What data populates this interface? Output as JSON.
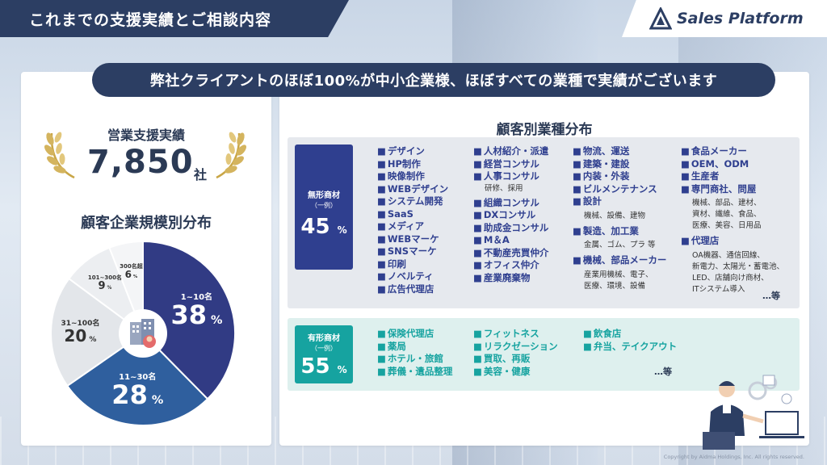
{
  "header": {
    "title": "これまでの支援実績とご相談内容",
    "logo": "Sales Platform"
  },
  "banner": "弊社クライアントのほぼ100%が中小企業様、ほぼすべての業種で実績がございます",
  "left": {
    "performance_label": "営業支援実績",
    "performance_number": "7,850",
    "performance_unit": "社",
    "distribution_title": "顧客企業規模別分布",
    "pie": [
      {
        "name": "1~10名",
        "value": 38,
        "pct": "%",
        "color": "#313b84"
      },
      {
        "name": "11~30名",
        "value": 28,
        "pct": "%",
        "color": "#2f5f9e"
      },
      {
        "name": "31~100名",
        "value": 20,
        "pct": "%",
        "color": "#e3e6ea"
      },
      {
        "name": "101~300名",
        "value": 9,
        "pct": "%",
        "color": "#eceef1"
      },
      {
        "name": "300名超",
        "value": 6,
        "pct": "%",
        "color": "#f4f5f7"
      }
    ]
  },
  "right": {
    "title": "顧客別業種分布",
    "intangible": {
      "name": "無形商材",
      "sub": "（一例）",
      "pct": "45",
      "pct_unit": "%",
      "col_a": [
        "デザイン",
        "HP制作",
        "映像制作",
        "WEBデザイン",
        "システム開発",
        "SaaS",
        "メディア",
        "WEBマーケ",
        "SNSマーケ",
        "印刷",
        "ノベルティ",
        "広告代理店"
      ],
      "col_b": {
        "items1": [
          "人材紹介・派遣",
          "経営コンサル",
          "人事コンサル"
        ],
        "note1": "研修、採用",
        "items2": [
          "組織コンサル",
          "DXコンサル",
          "助成金コンサル",
          "M＆A",
          "不動産売買仲介",
          "オフィス仲介",
          "産業廃棄物"
        ]
      },
      "col_c": {
        "items1": [
          "物流、運送",
          "建築・建設",
          "内装・外装",
          "ビルメンテナンス",
          "設計"
        ],
        "note1": "機械、設備、建物",
        "item2": "製造、加工業",
        "note2": "金属、ゴム、プラ 等",
        "item3": "機械、部品メーカー",
        "note3a": "産業用機械、電子、",
        "note3b": "医療、環境、設備"
      },
      "col_d": {
        "items1": [
          "食品メーカー",
          "OEM、ODM",
          "生産者",
          "専門商社、問屋"
        ],
        "note1a": "機械、部品、建材、",
        "note1b": "資材、繊維、食品、",
        "note1c": "医療、美容、日用品",
        "item2": "代理店",
        "note2a": "OA機器、通信回線、",
        "note2b": "新電力、太陽光・蓄電池、",
        "note2c": "LED、店舗向け商材、",
        "note2d": "ITシステム導入"
      },
      "etc": "…等"
    },
    "tangible": {
      "name": "有形商材",
      "sub": "（一例）",
      "pct": "55",
      "pct_unit": "%",
      "col_a": [
        "保険代理店",
        "薬局",
        "ホテル・旅館",
        "葬儀・遺品整理"
      ],
      "col_b": [
        "フィットネス",
        "リラクゼーション",
        "買取、再販",
        "美容・健康"
      ],
      "col_c": [
        "飲食店",
        "弁当、テイクアウト"
      ],
      "etc": "…等"
    }
  },
  "copyright": "Copyright by Aidma Holdings, Inc. All rights reserved.",
  "icons": {
    "logo": "sales-platform-logo-icon",
    "center": "office-building-icon",
    "laurel": "laurel-wreath-icon"
  }
}
